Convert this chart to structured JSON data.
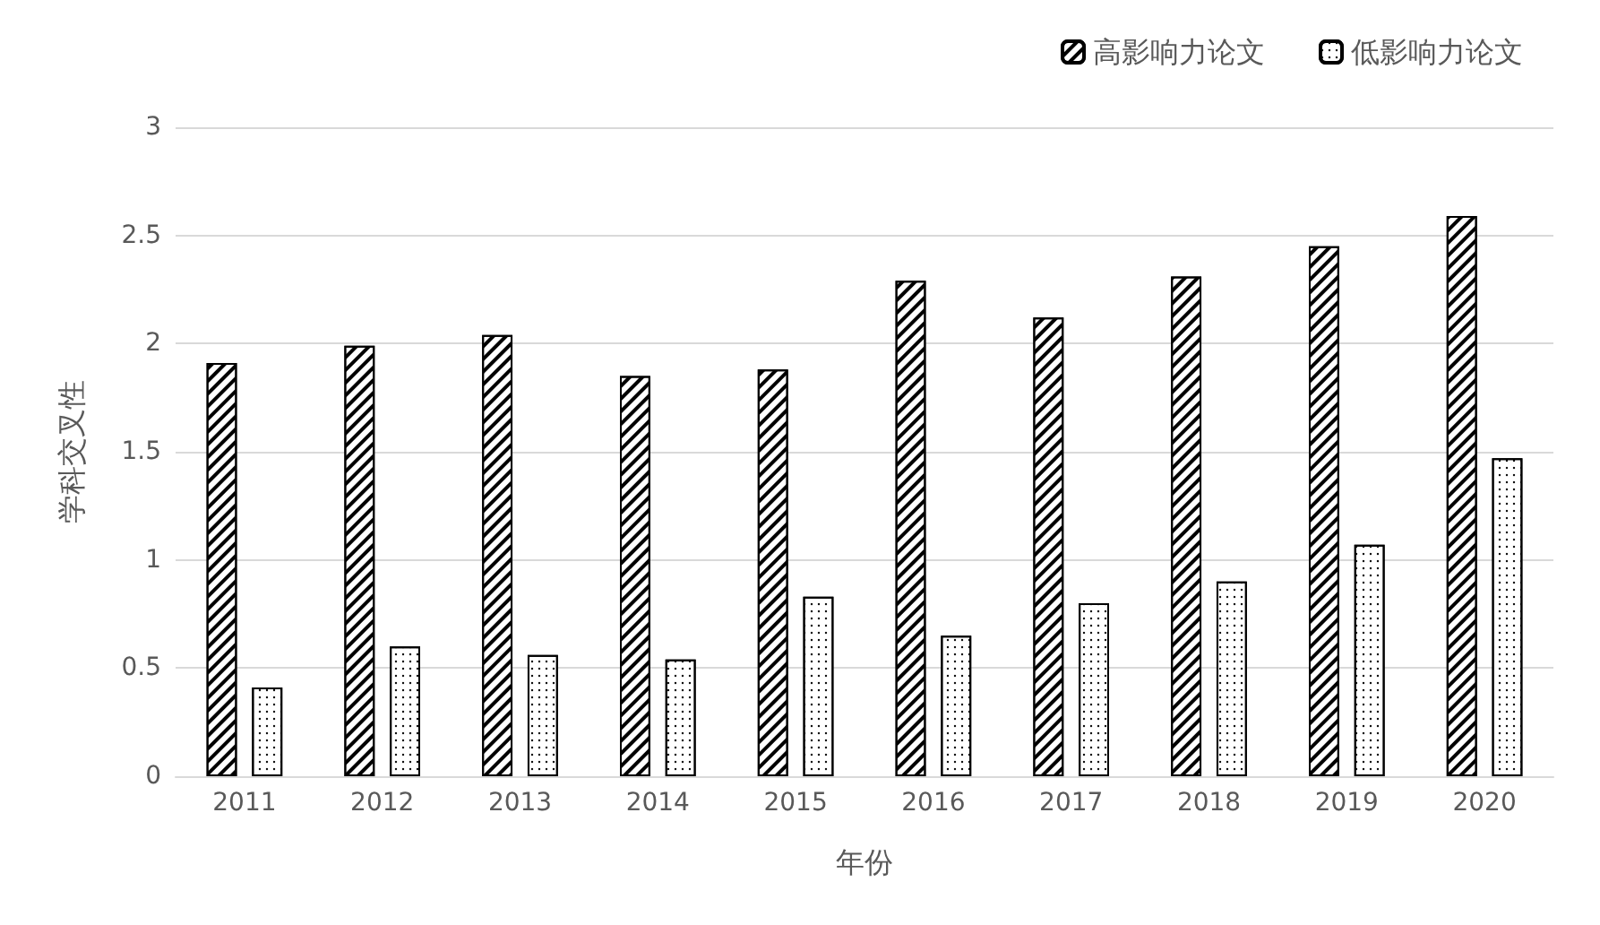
{
  "chart_data": {
    "type": "bar",
    "xlabel": "年份",
    "ylabel": "学科交叉性",
    "categories": [
      "2011",
      "2012",
      "2013",
      "2014",
      "2015",
      "2016",
      "2017",
      "2018",
      "2019",
      "2020"
    ],
    "series": [
      {
        "name": "高影响力论文",
        "color": "#000000",
        "values": [
          1.91,
          1.99,
          2.04,
          1.85,
          1.88,
          2.29,
          2.12,
          2.31,
          2.45,
          2.59
        ]
      },
      {
        "name": "低影响力论文",
        "color": "#000000",
        "values": [
          0.41,
          0.6,
          0.56,
          0.54,
          0.83,
          0.65,
          0.8,
          0.9,
          1.07,
          1.47
        ]
      }
    ],
    "ylim": [
      0,
      3
    ],
    "yticks": [
      0,
      0.5,
      1,
      1.5,
      2,
      2.5,
      3
    ],
    "grid": "y",
    "legend": "top right"
  }
}
